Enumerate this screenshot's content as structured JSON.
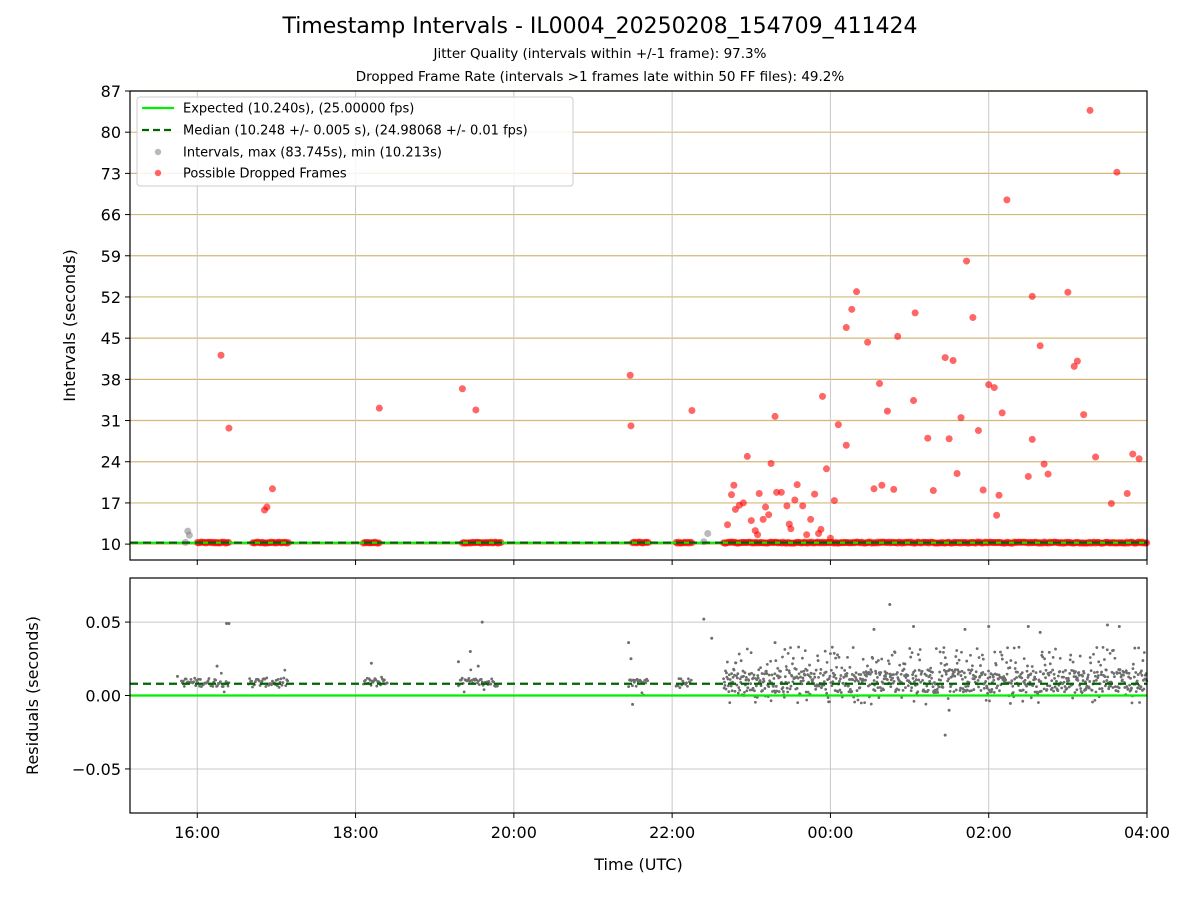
{
  "figure": {
    "title": "Timestamp Intervals - IL0004_20250208_154709_411424",
    "subtitle_1": "Jitter Quality (intervals within +/-1 frame): 97.3%",
    "subtitle_2": "Dropped Frame Rate (intervals >1 frames late within 50 FF files): 49.2%"
  },
  "colors": {
    "expected": "#00ee00",
    "median": "#006400",
    "intervals": "#808080",
    "dropped": "#ff0000",
    "hgrid_top": "#d4b87a",
    "grid": "#c8c8c8",
    "residuals": "#6e6e6e"
  },
  "chart_data": [
    {
      "type": "scatter",
      "panel": "top",
      "xlabel": "",
      "ylabel": "Intervals (seconds)",
      "x_unit": "hours since 00:00 UTC (negative = previous day)",
      "xlim": [
        -8.85,
        4.0
      ],
      "ylim": [
        7.3,
        87.0
      ],
      "yticks": [
        10,
        17,
        24,
        31,
        38,
        45,
        52,
        59,
        66,
        73,
        80,
        87
      ],
      "xticks": [
        -8,
        -6,
        -4,
        -2,
        0,
        2,
        4
      ],
      "xtick_labels": [
        "16:00",
        "18:00",
        "20:00",
        "22:00",
        "00:00",
        "02:00",
        "04:00"
      ],
      "grid": "horizontal and vertical",
      "legend": {
        "position": "upper-left",
        "entries": [
          "Expected (10.240s), (25.00000 fps)",
          "Median (10.248 +/- 0.005 s), (24.98068 +/- 0.01 fps)",
          "Intervals, max (83.745s), min (10.213s)",
          "Possible Dropped Frames"
        ]
      },
      "expected_value": 10.24,
      "median_value": 10.248,
      "interval_points": [
        [
          -8.15,
          10.3
        ],
        [
          -8.12,
          12.2
        ],
        [
          -8.1,
          11.5
        ],
        [
          -1.6,
          10.4
        ],
        [
          -1.55,
          11.8
        ]
      ],
      "dropped_clusters": [
        [
          -8.0,
          -7.6
        ],
        [
          -7.3,
          -6.85
        ],
        [
          -5.9,
          -5.7
        ],
        [
          -4.65,
          -4.15
        ],
        [
          -2.5,
          -2.3
        ],
        [
          -1.95,
          -1.75
        ],
        [
          -1.35,
          4.0
        ]
      ],
      "dropped_points": [
        [
          -7.7,
          42.1
        ],
        [
          -7.6,
          29.7
        ],
        [
          -7.15,
          15.8
        ],
        [
          -7.12,
          16.3
        ],
        [
          -7.05,
          19.4
        ],
        [
          -5.7,
          33.1
        ],
        [
          -4.65,
          36.4
        ],
        [
          -4.48,
          32.8
        ],
        [
          -2.53,
          38.7
        ],
        [
          -2.52,
          30.1
        ],
        [
          -1.75,
          32.7
        ],
        [
          -1.3,
          13.3
        ],
        [
          -1.25,
          18.4
        ],
        [
          -1.22,
          20.0
        ],
        [
          -1.2,
          15.9
        ],
        [
          -1.15,
          16.6
        ],
        [
          -1.1,
          17.0
        ],
        [
          -1.05,
          24.9
        ],
        [
          -1.0,
          14.0
        ],
        [
          -0.95,
          12.3
        ],
        [
          -0.92,
          11.6
        ],
        [
          -0.9,
          18.6
        ],
        [
          -0.85,
          14.2
        ],
        [
          -0.82,
          16.3
        ],
        [
          -0.78,
          15.0
        ],
        [
          -0.75,
          23.7
        ],
        [
          -0.7,
          31.7
        ],
        [
          -0.68,
          18.8
        ],
        [
          -0.62,
          18.8
        ],
        [
          -0.55,
          16.5
        ],
        [
          -0.52,
          13.4
        ],
        [
          -0.5,
          12.6
        ],
        [
          -0.45,
          17.5
        ],
        [
          -0.42,
          20.1
        ],
        [
          -0.35,
          16.5
        ],
        [
          -0.3,
          11.6
        ],
        [
          -0.25,
          14.2
        ],
        [
          -0.2,
          18.5
        ],
        [
          -0.15,
          11.8
        ],
        [
          -0.12,
          12.5
        ],
        [
          -0.1,
          35.1
        ],
        [
          -0.05,
          22.8
        ],
        [
          0.0,
          11.0
        ],
        [
          0.05,
          17.4
        ],
        [
          0.1,
          30.3
        ],
        [
          0.2,
          26.8
        ],
        [
          0.2,
          46.8
        ],
        [
          0.27,
          49.9
        ],
        [
          0.33,
          52.9
        ],
        [
          0.47,
          44.3
        ],
        [
          0.55,
          19.4
        ],
        [
          0.62,
          37.3
        ],
        [
          0.65,
          20.0
        ],
        [
          0.72,
          32.6
        ],
        [
          0.8,
          19.3
        ],
        [
          0.85,
          45.3
        ],
        [
          1.05,
          34.4
        ],
        [
          1.07,
          49.3
        ],
        [
          1.23,
          28.0
        ],
        [
          1.3,
          19.1
        ],
        [
          1.45,
          41.7
        ],
        [
          1.5,
          27.9
        ],
        [
          1.55,
          41.2
        ],
        [
          1.6,
          22.0
        ],
        [
          1.65,
          31.5
        ],
        [
          1.72,
          58.1
        ],
        [
          1.8,
          48.5
        ],
        [
          1.87,
          29.3
        ],
        [
          1.93,
          19.2
        ],
        [
          2.0,
          37.1
        ],
        [
          2.07,
          36.6
        ],
        [
          2.1,
          14.9
        ],
        [
          2.13,
          18.3
        ],
        [
          2.17,
          32.3
        ],
        [
          2.23,
          68.5
        ],
        [
          2.5,
          21.5
        ],
        [
          2.55,
          27.8
        ],
        [
          2.55,
          52.1
        ],
        [
          2.65,
          43.7
        ],
        [
          2.7,
          23.6
        ],
        [
          2.75,
          21.9
        ],
        [
          3.0,
          52.8
        ],
        [
          3.08,
          40.2
        ],
        [
          3.12,
          41.1
        ],
        [
          3.2,
          32.0
        ],
        [
          3.28,
          83.7
        ],
        [
          3.35,
          24.8
        ],
        [
          3.55,
          16.9
        ],
        [
          3.62,
          73.2
        ],
        [
          3.75,
          18.6
        ],
        [
          3.82,
          25.3
        ],
        [
          3.9,
          24.5
        ]
      ]
    },
    {
      "type": "scatter",
      "panel": "bottom",
      "xlabel": "Time (UTC)",
      "ylabel": "Residuals (seconds)",
      "xlim": [
        -8.85,
        4.0
      ],
      "ylim": [
        -0.08,
        0.08
      ],
      "yticks": [
        0.05,
        0.0,
        -0.05
      ],
      "ytick_labels": [
        "0.05",
        "0.00",
        "−0.05"
      ],
      "xticks": [
        -8,
        -6,
        -4,
        -2,
        0,
        2,
        4
      ],
      "xtick_labels": [
        "16:00",
        "18:00",
        "20:00",
        "22:00",
        "00:00",
        "02:00",
        "04:00"
      ],
      "grid": "horizontal and vertical",
      "expected_value": 0.0,
      "median_value": 0.008,
      "residual_clusters": [
        [
          -8.2,
          -7.6
        ],
        [
          -7.35,
          -6.85
        ],
        [
          -5.9,
          -5.6
        ],
        [
          -4.7,
          -4.2
        ],
        [
          -2.55,
          -2.3
        ],
        [
          -1.95,
          -1.75
        ],
        [
          -1.35,
          4.0
        ]
      ],
      "residual_outliers": [
        [
          -8.25,
          0.013
        ],
        [
          -7.75,
          0.02
        ],
        [
          -7.63,
          0.049
        ],
        [
          -7.6,
          0.049
        ],
        [
          -5.8,
          0.022
        ],
        [
          -4.7,
          0.023
        ],
        [
          -4.55,
          0.03
        ],
        [
          -4.4,
          0.05
        ],
        [
          -4.45,
          0.02
        ],
        [
          -2.55,
          0.036
        ],
        [
          -2.52,
          0.025
        ],
        [
          -2.5,
          -0.006
        ],
        [
          -1.6,
          0.052
        ],
        [
          -1.5,
          0.039
        ],
        [
          -0.7,
          0.036
        ],
        [
          0.55,
          0.045
        ],
        [
          0.75,
          0.062
        ],
        [
          1.05,
          0.047
        ],
        [
          1.7,
          0.045
        ],
        [
          1.45,
          -0.027
        ],
        [
          1.5,
          -0.01
        ],
        [
          2.0,
          0.047
        ],
        [
          2.5,
          0.047
        ],
        [
          2.65,
          0.043
        ],
        [
          3.5,
          0.048
        ],
        [
          3.65,
          0.047
        ]
      ]
    }
  ]
}
